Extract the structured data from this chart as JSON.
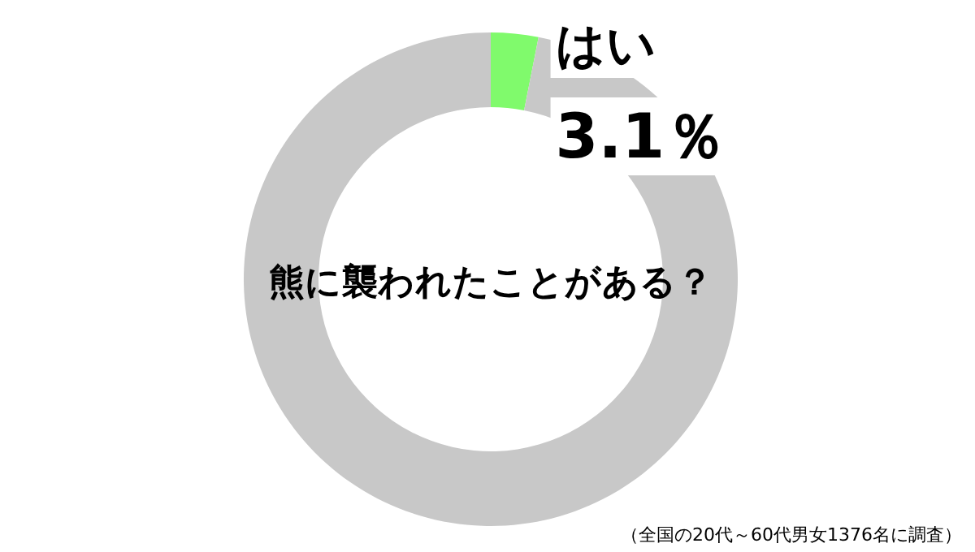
{
  "chart_data": {
    "type": "donut",
    "title": "熊に襲われたことがある？",
    "categories": [
      "はい",
      null
    ],
    "values": [
      3.1,
      96.9
    ],
    "colors": [
      "#80fa6c",
      "#c8c8c8"
    ],
    "value_labels": [
      "3.1％",
      null
    ],
    "annotations": [
      "（全国の20代～60代男女1376名に調査）"
    ]
  }
}
